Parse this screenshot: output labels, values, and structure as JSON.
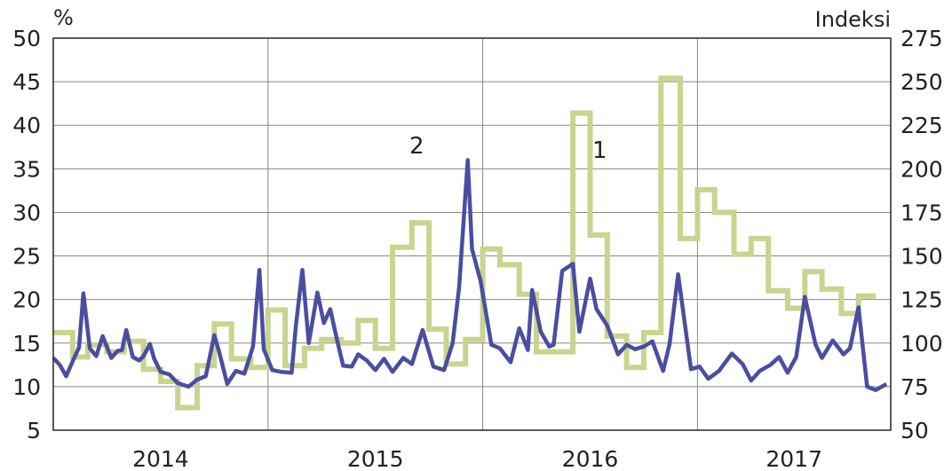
{
  "chart_data": {
    "type": "line",
    "title": "",
    "left_axis": {
      "unit_label": "%",
      "ylim": [
        5,
        50
      ],
      "ticks": [
        5,
        10,
        15,
        20,
        25,
        30,
        35,
        40,
        45,
        50
      ]
    },
    "right_axis": {
      "unit_label": "Indeksi",
      "ylim": [
        50,
        275
      ],
      "ticks": [
        50,
        75,
        100,
        125,
        150,
        175,
        200,
        225,
        250,
        275
      ]
    },
    "x_axis": {
      "tick_labels": [
        "2014",
        "2015",
        "2016",
        "2017"
      ],
      "xlim": [
        2013.75,
        2017.65
      ],
      "year_boundaries": [
        2014.75,
        2015.75,
        2016.75
      ]
    },
    "grid": "vertical at year boundaries, horizontal at left-axis ticks",
    "colors": {
      "series_1": "#c9d48f",
      "series_2": "#4a4ea0",
      "frame": "#333333",
      "grid": "#888888"
    },
    "series": [
      {
        "name": "1",
        "axis": "right",
        "step": true,
        "points": [
          [
            2013.75,
            106
          ],
          [
            2013.84,
            92
          ],
          [
            2013.91,
            99
          ],
          [
            2014.0,
            95
          ],
          [
            2014.08,
            101
          ],
          [
            2014.17,
            85
          ],
          [
            2014.25,
            78
          ],
          [
            2014.33,
            63
          ],
          [
            2014.42,
            87
          ],
          [
            2014.5,
            111
          ],
          [
            2014.58,
            91
          ],
          [
            2014.67,
            86
          ],
          [
            2014.75,
            119
          ],
          [
            2014.83,
            87
          ],
          [
            2014.92,
            97
          ],
          [
            2015.0,
            102
          ],
          [
            2015.09,
            100
          ],
          [
            2015.17,
            113
          ],
          [
            2015.25,
            97
          ],
          [
            2015.33,
            155
          ],
          [
            2015.42,
            169
          ],
          [
            2015.5,
            108
          ],
          [
            2015.58,
            88
          ],
          [
            2015.67,
            102
          ],
          [
            2015.75,
            154
          ],
          [
            2015.83,
            145
          ],
          [
            2015.92,
            128
          ],
          [
            2016.0,
            95
          ],
          [
            2016.08,
            95
          ],
          [
            2016.17,
            232
          ],
          [
            2016.25,
            162
          ],
          [
            2016.33,
            104
          ],
          [
            2016.42,
            86
          ],
          [
            2016.5,
            106
          ],
          [
            2016.58,
            252
          ],
          [
            2016.67,
            160
          ],
          [
            2016.75,
            188
          ],
          [
            2016.83,
            175
          ],
          [
            2016.92,
            151
          ],
          [
            2017.0,
            160
          ],
          [
            2017.08,
            130
          ],
          [
            2017.17,
            120
          ],
          [
            2017.25,
            141
          ],
          [
            2017.33,
            131
          ],
          [
            2017.42,
            117
          ],
          [
            2017.5,
            127
          ],
          [
            2017.58,
            127
          ]
        ]
      },
      {
        "name": "2",
        "axis": "left",
        "step": false,
        "points": [
          [
            2013.75,
            13.3
          ],
          [
            2013.78,
            12.5
          ],
          [
            2013.81,
            11.2
          ],
          [
            2013.84,
            12.9
          ],
          [
            2013.87,
            14.5
          ],
          [
            2013.89,
            20.7
          ],
          [
            2013.92,
            14.4
          ],
          [
            2013.95,
            13.5
          ],
          [
            2013.98,
            15.8
          ],
          [
            2014.02,
            13.3
          ],
          [
            2014.05,
            14.1
          ],
          [
            2014.07,
            14.2
          ],
          [
            2014.09,
            16.5
          ],
          [
            2014.12,
            13.4
          ],
          [
            2014.15,
            13.0
          ],
          [
            2014.17,
            13.5
          ],
          [
            2014.2,
            14.9
          ],
          [
            2014.22,
            13.2
          ],
          [
            2014.25,
            11.7
          ],
          [
            2014.29,
            11.4
          ],
          [
            2014.33,
            10.4
          ],
          [
            2014.38,
            10.0
          ],
          [
            2014.42,
            10.8
          ],
          [
            2014.46,
            11.2
          ],
          [
            2014.5,
            15.9
          ],
          [
            2014.52,
            14.2
          ],
          [
            2014.56,
            10.3
          ],
          [
            2014.6,
            11.8
          ],
          [
            2014.64,
            11.5
          ],
          [
            2014.68,
            14.6
          ],
          [
            2014.71,
            23.4
          ],
          [
            2014.73,
            14.3
          ],
          [
            2014.77,
            11.9
          ],
          [
            2014.81,
            11.7
          ],
          [
            2014.86,
            11.6
          ],
          [
            2014.88,
            17.0
          ],
          [
            2014.91,
            23.4
          ],
          [
            2014.94,
            15.0
          ],
          [
            2014.98,
            20.8
          ],
          [
            2015.01,
            17.3
          ],
          [
            2015.04,
            18.9
          ],
          [
            2015.07,
            15.5
          ],
          [
            2015.1,
            12.4
          ],
          [
            2015.14,
            12.3
          ],
          [
            2015.17,
            13.7
          ],
          [
            2015.21,
            13.0
          ],
          [
            2015.25,
            11.9
          ],
          [
            2015.29,
            13.2
          ],
          [
            2015.33,
            11.7
          ],
          [
            2015.38,
            13.3
          ],
          [
            2015.42,
            12.6
          ],
          [
            2015.47,
            16.5
          ],
          [
            2015.52,
            12.3
          ],
          [
            2015.57,
            11.9
          ],
          [
            2015.61,
            15.0
          ],
          [
            2015.64,
            21.4
          ],
          [
            2015.68,
            36.0
          ],
          [
            2015.7,
            25.8
          ],
          [
            2015.74,
            22.1
          ],
          [
            2015.79,
            14.8
          ],
          [
            2015.83,
            14.4
          ],
          [
            2015.88,
            12.8
          ],
          [
            2015.92,
            16.7
          ],
          [
            2015.96,
            14.2
          ],
          [
            2015.98,
            21.1
          ],
          [
            2016.02,
            16.3
          ],
          [
            2016.06,
            14.6
          ],
          [
            2016.08,
            14.8
          ],
          [
            2016.12,
            23.3
          ],
          [
            2016.17,
            24.1
          ],
          [
            2016.2,
            16.3
          ],
          [
            2016.25,
            22.4
          ],
          [
            2016.28,
            18.9
          ],
          [
            2016.33,
            17.0
          ],
          [
            2016.38,
            13.7
          ],
          [
            2016.42,
            14.8
          ],
          [
            2016.46,
            14.3
          ],
          [
            2016.5,
            14.6
          ],
          [
            2016.54,
            15.2
          ],
          [
            2016.59,
            11.8
          ],
          [
            2016.62,
            14.9
          ],
          [
            2016.66,
            22.9
          ],
          [
            2016.72,
            12.0
          ],
          [
            2016.76,
            12.3
          ],
          [
            2016.8,
            10.9
          ],
          [
            2016.85,
            11.8
          ],
          [
            2016.91,
            13.8
          ],
          [
            2016.96,
            12.6
          ],
          [
            2017.0,
            10.7
          ],
          [
            2017.04,
            11.8
          ],
          [
            2017.09,
            12.5
          ],
          [
            2017.13,
            13.4
          ],
          [
            2017.17,
            11.6
          ],
          [
            2017.21,
            13.4
          ],
          [
            2017.25,
            20.3
          ],
          [
            2017.3,
            14.8
          ],
          [
            2017.33,
            13.3
          ],
          [
            2017.38,
            15.3
          ],
          [
            2017.43,
            13.7
          ],
          [
            2017.46,
            14.4
          ],
          [
            2017.5,
            19.1
          ],
          [
            2017.54,
            10.0
          ],
          [
            2017.58,
            9.6
          ],
          [
            2017.63,
            10.3
          ]
        ]
      }
    ]
  }
}
